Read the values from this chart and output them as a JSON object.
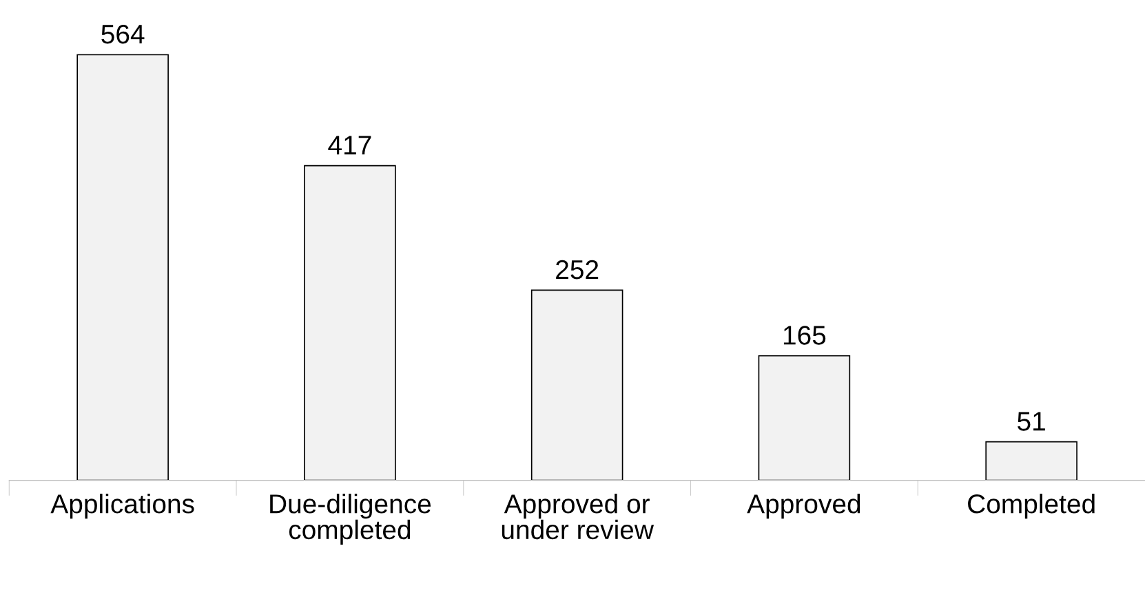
{
  "chart_data": {
    "type": "bar",
    "categories": [
      "Applications",
      "Due-diligence\ncompleted",
      "Approved or\nunder review",
      "Approved",
      "Completed"
    ],
    "values": [
      564,
      417,
      252,
      165,
      51
    ],
    "color": "#f2f2f2",
    "data_labels": true,
    "grid": false,
    "legend": false
  }
}
